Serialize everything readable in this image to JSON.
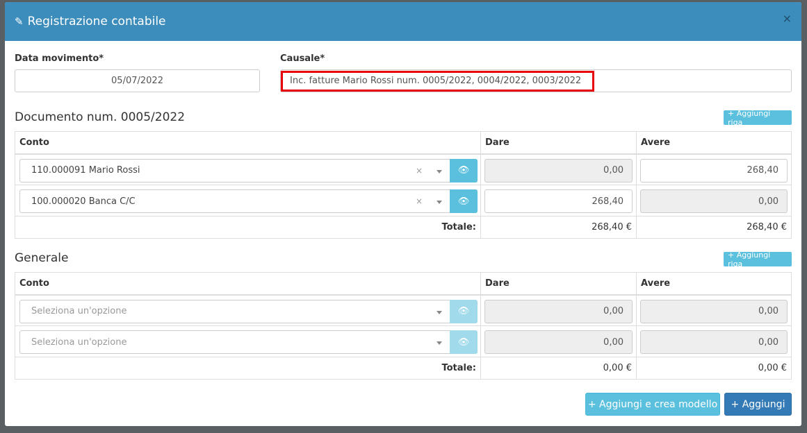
{
  "modal": {
    "title": "Registrazione contabile",
    "close": "×"
  },
  "form": {
    "data_label": "Data movimento*",
    "data_value": "05/07/2022",
    "causale_label": "Causale*",
    "causale_value": "Inc. fatture Mario Rossi num. 0005/2022, 0004/2022, 0003/2022",
    "highlight_color": "#e8000b"
  },
  "doc": {
    "title": "Documento num. 0005/2022",
    "add_row": "+ Aggiungi riga",
    "headers": [
      "Conto",
      "Dare",
      "Avere"
    ],
    "rows": [
      {
        "conto": "110.000091 Mario Rossi",
        "dare": "0,00",
        "avere": "268,40"
      },
      {
        "conto": "100.000020 Banca C/C",
        "dare": "268,40",
        "avere": "0,00"
      }
    ],
    "total_label": "Totale:",
    "total_dare": "268,40 €",
    "total_avere": "268,40 €"
  },
  "gen": {
    "title": "Generale",
    "add_row": "+ Aggiungi riga",
    "headers": [
      "Conto",
      "Dare",
      "Avere"
    ],
    "rows": [
      {
        "placeholder": "Seleziona un'opzione",
        "dare": "0,00",
        "avere": "0,00"
      },
      {
        "placeholder": "Seleziona un'opzione",
        "dare": "0,00",
        "avere": "0,00"
      }
    ],
    "total_label": "Totale:",
    "total_dare": "0,00 €",
    "total_avere": "0,00 €"
  },
  "footer": {
    "add_model": "+ Aggiungi e crea modello",
    "add": "+ Aggiungi"
  },
  "colors": {
    "header": "#3c8dbc",
    "info": "#5bc0de",
    "primary": "#337ab7"
  }
}
